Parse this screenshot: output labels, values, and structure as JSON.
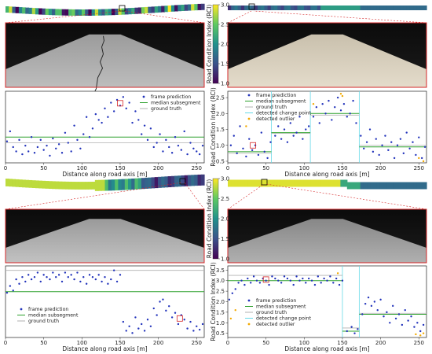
{
  "figure": {
    "colorbar_label": "Road Condition Index (RCI)",
    "x_axis_label": "Distance along road axis [m]",
    "y_axis_label": "Road Condition Index (RCI)"
  },
  "colors": {
    "prediction": "#2233bb",
    "median": "#2ca02c",
    "ground_truth": "#b0b0b0",
    "change_point": "#66d9e8",
    "outlier": "#f2a900",
    "highlight_box": "#d62728",
    "road_frame": "#d62728"
  },
  "colorbar": {
    "ticks": [
      "1.0",
      "1.5",
      "2.0",
      "2.5",
      "3.0"
    ],
    "range": [
      1.0,
      3.0
    ]
  },
  "chart_data": [
    {
      "type": "scatter",
      "panel": "top-left",
      "xlabel": "Distance along road axis [m]",
      "ylabel": "",
      "xlim": [
        0,
        260
      ],
      "ylim": [
        0.3,
        2.8
      ],
      "xticks": [
        0,
        50,
        100,
        150,
        200,
        250
      ],
      "yticks": [],
      "legend": "right",
      "series": [
        {
          "name": "frame prediction",
          "kind": "points",
          "x": [
            2,
            6,
            10,
            14,
            18,
            22,
            26,
            30,
            34,
            38,
            42,
            46,
            50,
            54,
            58,
            62,
            66,
            70,
            74,
            78,
            82,
            86,
            90,
            94,
            98,
            102,
            106,
            110,
            114,
            118,
            122,
            126,
            130,
            134,
            138,
            142,
            146,
            150,
            154,
            158,
            162,
            166,
            170,
            174,
            178,
            182,
            186,
            190,
            194,
            198,
            202,
            206,
            210,
            214,
            218,
            222,
            226,
            230,
            234,
            238,
            242,
            246,
            250,
            254,
            258
          ],
          "y": [
            1.05,
            1.4,
            0.85,
            0.7,
            1.1,
            0.6,
            0.9,
            0.7,
            1.2,
            0.65,
            0.85,
            1.1,
            0.75,
            0.9,
            0.55,
            1.15,
            0.8,
            0.95,
            0.65,
            1.35,
            1.0,
            0.7,
            1.6,
            1.1,
            0.8,
            1.3,
            1.9,
            1.2,
            1.5,
            2.0,
            1.8,
            1.7,
            2.2,
            1.9,
            2.4,
            2.1,
            2.5,
            2.3,
            2.6,
            2.2,
            2.4,
            1.7,
            2.1,
            1.8,
            1.3,
            1.6,
            1.1,
            1.5,
            0.85,
            1.0,
            1.3,
            0.7,
            1.1,
            0.85,
            0.65,
            1.2,
            0.9,
            0.75,
            1.4,
            0.6,
            1.0,
            0.8,
            0.7,
            0.6,
            0.9
          ]
        },
        {
          "name": "median subsegment",
          "kind": "segments",
          "segments": [
            {
              "x0": 0,
              "x1": 260,
              "y": 1.2
            }
          ]
        },
        {
          "name": "ground truth",
          "kind": "segments",
          "segments": [
            {
              "x0": 0,
              "x1": 260,
              "y": 1.0
            }
          ]
        }
      ],
      "highlight": {
        "x": 150,
        "y": 2.38
      }
    },
    {
      "type": "scatter",
      "panel": "top-right",
      "xlabel": "Distance along road axis [m]",
      "ylabel": "Road Condition Index (RCI)",
      "xlim": [
        0,
        260
      ],
      "ylim": [
        0.45,
        2.7
      ],
      "xticks": [
        0,
        50,
        100,
        150,
        200,
        250
      ],
      "yticks": [
        0.5,
        1.0,
        1.5,
        2.0,
        2.5
      ],
      "legend": "top-left",
      "series": [
        {
          "name": "frame prediction",
          "kind": "points",
          "x": [
            4,
            8,
            12,
            16,
            20,
            24,
            28,
            32,
            36,
            40,
            44,
            48,
            52,
            56,
            62,
            66,
            70,
            74,
            78,
            82,
            86,
            90,
            94,
            98,
            102,
            106,
            112,
            116,
            120,
            124,
            128,
            132,
            136,
            140,
            144,
            148,
            152,
            156,
            160,
            164,
            168,
            174,
            178,
            182,
            186,
            190,
            194,
            198,
            202,
            206,
            210,
            214,
            218,
            222,
            226,
            230,
            234,
            238,
            242,
            246,
            250,
            254,
            258
          ],
          "y": [
            1.0,
            1.3,
            0.75,
            1.6,
            0.9,
            0.65,
            1.2,
            0.85,
            1.0,
            0.7,
            1.4,
            0.8,
            0.6,
            1.1,
            1.3,
            1.6,
            1.2,
            1.5,
            1.1,
            1.7,
            1.3,
            1.4,
            1.9,
            1.2,
            1.5,
            1.6,
            1.9,
            2.2,
            1.7,
            2.3,
            2.0,
            2.4,
            1.8,
            2.2,
            2.5,
            2.1,
            2.3,
            1.9,
            2.0,
            2.4,
            1.7,
            1.3,
            0.9,
            1.1,
            1.5,
            0.8,
            1.2,
            0.7,
            1.0,
            1.3,
            0.85,
            1.1,
            0.6,
            1.0,
            1.2,
            0.75,
            1.4,
            0.9,
            1.1,
            0.7,
            1.25,
            0.6,
            0.95
          ]
        },
        {
          "name": "median subsegment",
          "kind": "segments",
          "segments": [
            {
              "x0": 0,
              "x1": 57,
              "y": 0.8
            },
            {
              "x0": 57,
              "x1": 108,
              "y": 1.4
            },
            {
              "x0": 108,
              "x1": 172,
              "y": 2.0
            },
            {
              "x0": 172,
              "x1": 260,
              "y": 0.95
            }
          ]
        },
        {
          "name": "ground truth",
          "kind": "segments",
          "segments": [
            {
              "x0": 0,
              "x1": 57,
              "y": 0.75
            },
            {
              "x0": 57,
              "x1": 108,
              "y": 1.38
            },
            {
              "x0": 108,
              "x1": 172,
              "y": 1.95
            },
            {
              "x0": 172,
              "x1": 260,
              "y": 1.0
            }
          ]
        },
        {
          "name": "detected change point",
          "kind": "vlines",
          "x": [
            57,
            108,
            172
          ]
        },
        {
          "name": "detected outlier",
          "kind": "points",
          "x": [
            24,
            112,
            148,
            150,
            250,
            256
          ],
          "y": [
            1.6,
            2.3,
            2.62,
            2.55,
            0.6,
            0.5
          ]
        }
      ],
      "highlight": {
        "x": 33,
        "y": 1.0
      }
    },
    {
      "type": "scatter",
      "panel": "bottom-left",
      "xlabel": "Distance along road axis [m]",
      "ylabel": "",
      "xlim": [
        0,
        260
      ],
      "ylim": [
        0.3,
        3.5
      ],
      "xticks": [
        0,
        50,
        100,
        150,
        200,
        250
      ],
      "yticks": [],
      "legend": "bottom-left",
      "series": [
        {
          "name": "frame prediction",
          "kind": "points",
          "x": [
            2,
            6,
            10,
            14,
            18,
            22,
            26,
            30,
            34,
            38,
            42,
            46,
            50,
            54,
            58,
            62,
            66,
            70,
            74,
            78,
            82,
            86,
            90,
            94,
            98,
            102,
            106,
            110,
            114,
            118,
            122,
            126,
            130,
            134,
            138,
            142,
            146,
            150,
            154,
            158,
            162,
            166,
            170,
            174,
            178,
            182,
            186,
            190,
            194,
            198,
            202,
            206,
            210,
            214,
            218,
            222,
            226,
            230,
            234,
            238,
            242,
            246,
            250,
            254,
            258
          ],
          "y": [
            2.3,
            2.6,
            2.4,
            2.9,
            2.7,
            3.0,
            2.8,
            3.1,
            2.9,
            3.0,
            3.2,
            2.8,
            3.1,
            3.0,
            2.9,
            3.2,
            3.0,
            3.1,
            2.8,
            3.2,
            3.0,
            3.1,
            2.9,
            3.2,
            2.8,
            3.0,
            2.7,
            3.1,
            3.0,
            2.9,
            3.1,
            2.8,
            3.0,
            2.7,
            2.9,
            3.3,
            2.8,
            3.1,
            1.0,
            0.6,
            0.8,
            0.5,
            1.2,
            0.7,
            0.9,
            0.6,
            1.1,
            0.8,
            1.6,
            1.3,
            1.9,
            2.0,
            1.5,
            1.7,
            1.2,
            1.4,
            0.9,
            1.3,
            1.1,
            0.7,
            1.0,
            0.6,
            0.8,
            0.65,
            0.9
          ]
        },
        {
          "name": "median subsegment",
          "kind": "segments",
          "segments": [
            {
              "x0": 0,
              "x1": 260,
              "y": 2.35
            }
          ]
        },
        {
          "name": "ground truth",
          "kind": "segments",
          "segments": [
            {
              "x0": 0,
              "x1": 260,
              "y": 3.3
            }
          ]
        }
      ],
      "highlight": {
        "x": 228,
        "y": 1.15
      }
    },
    {
      "type": "scatter",
      "panel": "bottom-right",
      "xlabel": "Distance along road axis [m]",
      "ylabel": "Road Condition Index (RCI)",
      "xlim": [
        0,
        260
      ],
      "ylim": [
        0.3,
        3.7
      ],
      "xticks": [
        0,
        50,
        100,
        150,
        200,
        250
      ],
      "yticks": [
        0.5,
        1.0,
        1.5,
        2.0,
        2.5,
        3.0,
        3.5
      ],
      "legend": "bottom-left",
      "series": [
        {
          "name": "frame prediction",
          "kind": "points",
          "x": [
            2,
            6,
            10,
            14,
            18,
            22,
            26,
            30,
            34,
            38,
            42,
            46,
            50,
            54,
            58,
            62,
            66,
            70,
            74,
            78,
            82,
            86,
            90,
            94,
            98,
            102,
            106,
            110,
            114,
            118,
            122,
            126,
            130,
            134,
            138,
            142,
            146,
            150,
            156,
            162,
            166,
            170,
            176,
            180,
            184,
            188,
            192,
            196,
            200,
            204,
            208,
            212,
            216,
            220,
            224,
            228,
            232,
            236,
            240,
            244,
            248,
            252,
            256
          ],
          "y": [
            2.1,
            2.4,
            2.6,
            2.9,
            3.0,
            2.8,
            3.1,
            2.9,
            3.2,
            3.0,
            2.9,
            3.1,
            3.0,
            2.8,
            3.2,
            3.1,
            3.0,
            2.9,
            3.2,
            3.1,
            3.0,
            2.8,
            3.2,
            3.0,
            3.1,
            2.9,
            3.1,
            3.0,
            2.8,
            3.2,
            2.9,
            3.1,
            3.0,
            3.2,
            2.9,
            3.1,
            2.8,
            3.0,
            0.6,
            0.8,
            0.5,
            0.7,
            1.4,
            1.9,
            2.2,
            1.8,
            2.0,
            1.6,
            2.1,
            1.3,
            1.5,
            1.0,
            1.8,
            1.2,
            1.4,
            0.9,
            1.6,
            1.1,
            1.3,
            0.8,
            1.0,
            0.6,
            0.9
          ]
        },
        {
          "name": "median subsegment",
          "kind": "segments",
          "segments": [
            {
              "x0": 0,
              "x1": 150,
              "y": 3.0
            },
            {
              "x0": 150,
              "x1": 172,
              "y": 0.6
            },
            {
              "x0": 172,
              "x1": 260,
              "y": 1.4
            }
          ]
        },
        {
          "name": "ground truth",
          "kind": "segments",
          "segments": [
            {
              "x0": 0,
              "x1": 150,
              "y": 3.25
            },
            {
              "x0": 150,
              "x1": 172,
              "y": 0.75
            },
            {
              "x0": 172,
              "x1": 260,
              "y": 1.45
            }
          ]
        },
        {
          "name": "detected change point",
          "kind": "vlines",
          "x": [
            150,
            172
          ]
        },
        {
          "name": "detected outlier",
          "kind": "points",
          "x": [
            4,
            10,
            144,
            246,
            252,
            256
          ],
          "y": [
            1.2,
            1.6,
            3.35,
            0.45,
            0.4,
            0.5
          ]
        }
      ],
      "highlight": {
        "x": 50,
        "y": 3.05
      }
    }
  ]
}
